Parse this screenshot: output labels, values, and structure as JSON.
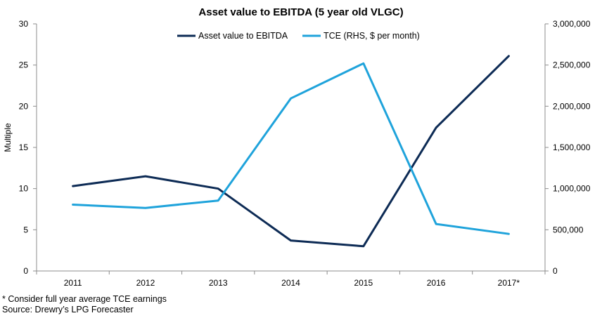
{
  "chart_data": {
    "type": "line",
    "title": "Asset value to EBITDA (5 year old VLGC)",
    "xlabel": "",
    "ylabel": "Multiple",
    "y2label": "",
    "categories": [
      "2011",
      "2012",
      "2013",
      "2014",
      "2015",
      "2016",
      "2017*"
    ],
    "ylim": [
      0,
      30
    ],
    "yticks": [
      "0",
      "5",
      "10",
      "15",
      "20",
      "25",
      "30"
    ],
    "y2lim": [
      0,
      3000000
    ],
    "y2ticks": [
      "0",
      "500,000",
      "1,000,000",
      "1,500,000",
      "2,000,000",
      "2,500,000",
      "3,000,000"
    ],
    "legend_position": "top",
    "grid": false,
    "series": [
      {
        "name": "Asset value to EBITDA",
        "axis": "left",
        "color": "#0d2b55",
        "values": [
          10.3,
          11.5,
          10.0,
          3.7,
          3.0,
          17.4,
          26.1
        ]
      },
      {
        "name": "TCE (RHS, $ per month)",
        "axis": "right",
        "color": "#1fa3db",
        "values": [
          805000,
          765000,
          855000,
          2095000,
          2520000,
          570000,
          450000
        ]
      }
    ]
  },
  "footnotes": [
    "* Consider full year average  TCE earnings",
    "Source:  Drewry’s LPG Forecaster"
  ]
}
